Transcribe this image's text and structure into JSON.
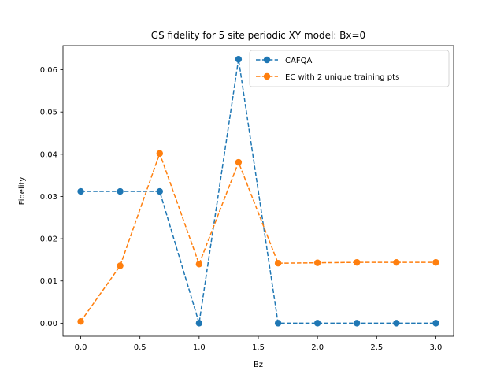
{
  "chart_data": {
    "type": "line",
    "title": "GS fidelity for 5 site periodic XY model: Bx=0",
    "xlabel": "Bz",
    "ylabel": "Fidelity",
    "xlim": [
      -0.15,
      3.15
    ],
    "ylim": [
      -0.0031,
      0.0657
    ],
    "xticks": [
      0.0,
      0.5,
      1.0,
      1.5,
      2.0,
      2.5,
      3.0
    ],
    "xtick_labels": [
      "0.0",
      "0.5",
      "1.0",
      "1.5",
      "2.0",
      "2.5",
      "3.0"
    ],
    "yticks": [
      0.0,
      0.01,
      0.02,
      0.03,
      0.04,
      0.05,
      0.06
    ],
    "ytick_labels": [
      "0.00",
      "0.01",
      "0.02",
      "0.03",
      "0.04",
      "0.05",
      "0.06"
    ],
    "grid": false,
    "legend_position": "top-right",
    "x": [
      0.0,
      0.333,
      0.667,
      1.0,
      1.333,
      1.667,
      2.0,
      2.333,
      2.667,
      3.0
    ],
    "series": [
      {
        "name": "CAFQA",
        "color": "#1f77b4",
        "line_style": "dashed",
        "marker": "circle",
        "values": [
          0.0312,
          0.0312,
          0.0312,
          0.0,
          0.0625,
          0.0,
          0.0,
          0.0,
          0.0,
          0.0
        ]
      },
      {
        "name": "EC with 2 unique training pts",
        "color": "#ff7f0e",
        "line_style": "dashed",
        "marker": "circle",
        "values": [
          0.0004,
          0.0136,
          0.0402,
          0.014,
          0.0381,
          0.0142,
          0.0143,
          0.0144,
          0.0144,
          0.0144
        ]
      }
    ]
  }
}
